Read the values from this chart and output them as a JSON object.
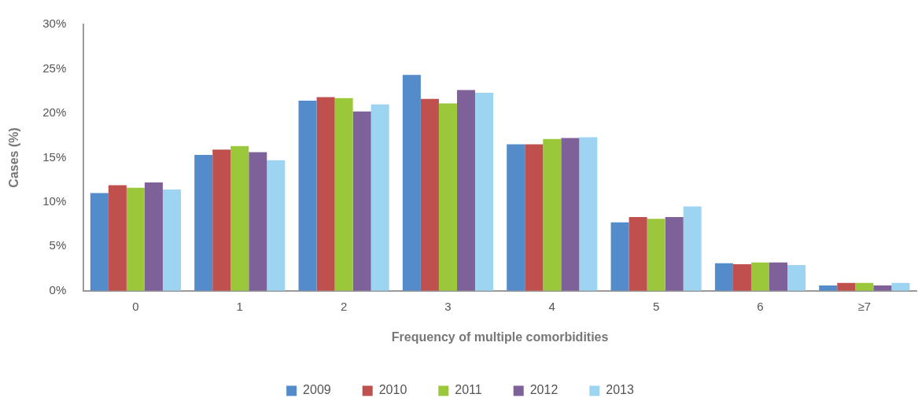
{
  "chart_data": {
    "type": "bar",
    "xlabel": "Frequency of multiple comorbidities",
    "ylabel": "Cases (%)",
    "categories": [
      "0",
      "1",
      "2",
      "3",
      "4",
      "5",
      "6",
      "≥7"
    ],
    "series": [
      {
        "name": "2009",
        "color": "#548bca",
        "values": [
          11.0,
          15.3,
          21.4,
          24.3,
          16.5,
          7.7,
          3.1,
          0.6
        ]
      },
      {
        "name": "2010",
        "color": "#c0504d",
        "values": [
          11.9,
          15.9,
          21.8,
          21.6,
          16.5,
          8.3,
          3.0,
          0.9
        ]
      },
      {
        "name": "2011",
        "color": "#9bc83b",
        "values": [
          11.6,
          16.3,
          21.7,
          21.1,
          17.1,
          8.1,
          3.2,
          0.9
        ]
      },
      {
        "name": "2012",
        "color": "#7e6198",
        "values": [
          12.2,
          15.6,
          20.2,
          22.6,
          17.2,
          8.3,
          3.2,
          0.6
        ]
      },
      {
        "name": "2013",
        "color": "#9dd4f1",
        "values": [
          11.4,
          14.7,
          21.0,
          22.3,
          17.3,
          9.5,
          2.9,
          0.9
        ]
      }
    ],
    "ylim": [
      0,
      30
    ],
    "yticks": [
      {
        "value": 0,
        "label": "0%"
      },
      {
        "value": 5,
        "label": "5%"
      },
      {
        "value": 10,
        "label": "10%"
      },
      {
        "value": 15,
        "label": "15%"
      },
      {
        "value": 20,
        "label": "20%"
      },
      {
        "value": 25,
        "label": "25%"
      },
      {
        "value": 30,
        "label": "30%"
      }
    ],
    "grid": false,
    "legend": "bottom"
  }
}
